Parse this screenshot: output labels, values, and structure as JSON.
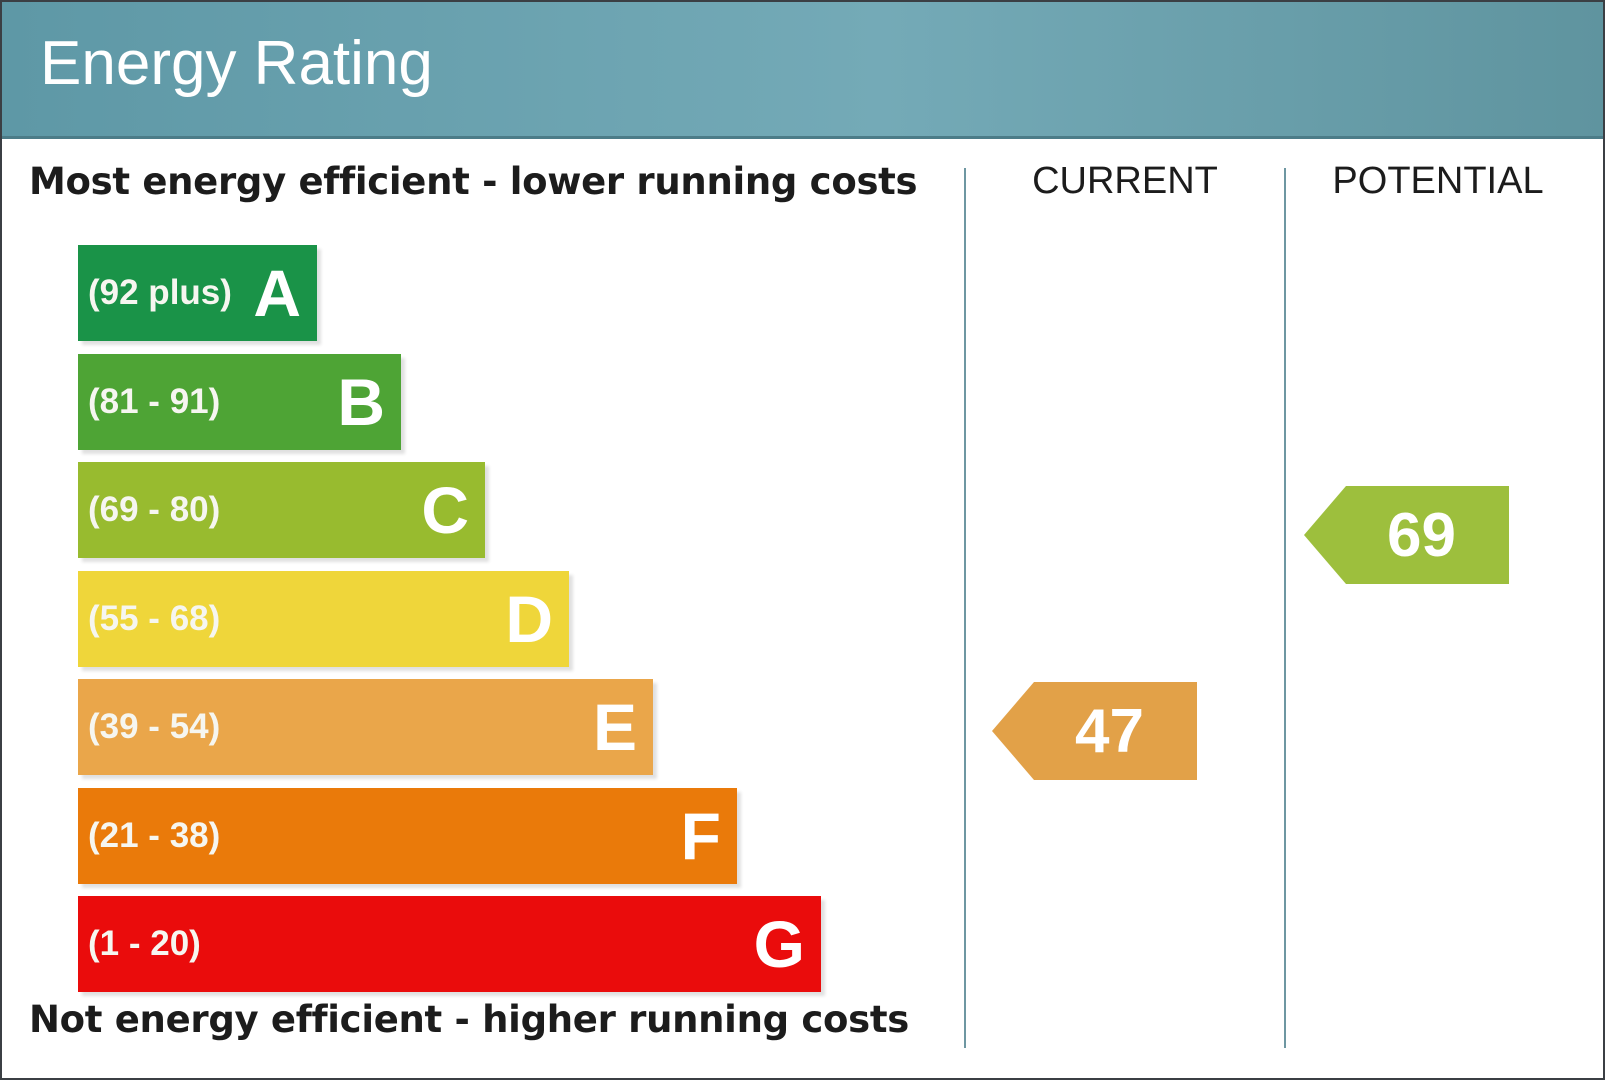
{
  "title": "Energy Rating",
  "top_label": "Most energy efficient - lower running costs",
  "bottom_label": "Not energy efficient - higher running costs",
  "columns": {
    "current": "CURRENT",
    "potential": "POTENTIAL"
  },
  "chart_data": {
    "type": "bar",
    "title": "Energy Rating",
    "bands": [
      {
        "letter": "A",
        "range": "(92 plus)",
        "color": "#1a9348"
      },
      {
        "letter": "B",
        "range": "(81 - 91)",
        "color": "#4ea435"
      },
      {
        "letter": "C",
        "range": "(69 - 80)",
        "color": "#98bb2f"
      },
      {
        "letter": "D",
        "range": "(55 - 68)",
        "color": "#efd63a"
      },
      {
        "letter": "E",
        "range": "(39 - 54)",
        "color": "#eaa64a"
      },
      {
        "letter": "F",
        "range": "(21 - 38)",
        "color": "#ea7a0a"
      },
      {
        "letter": "G",
        "range": "(1 - 20)",
        "color": "#ea0c0c"
      }
    ],
    "current": {
      "value": "47",
      "band": "E",
      "color": "#e2a148"
    },
    "potential": {
      "value": "69",
      "band": "C",
      "color": "#9dbf3d"
    }
  }
}
